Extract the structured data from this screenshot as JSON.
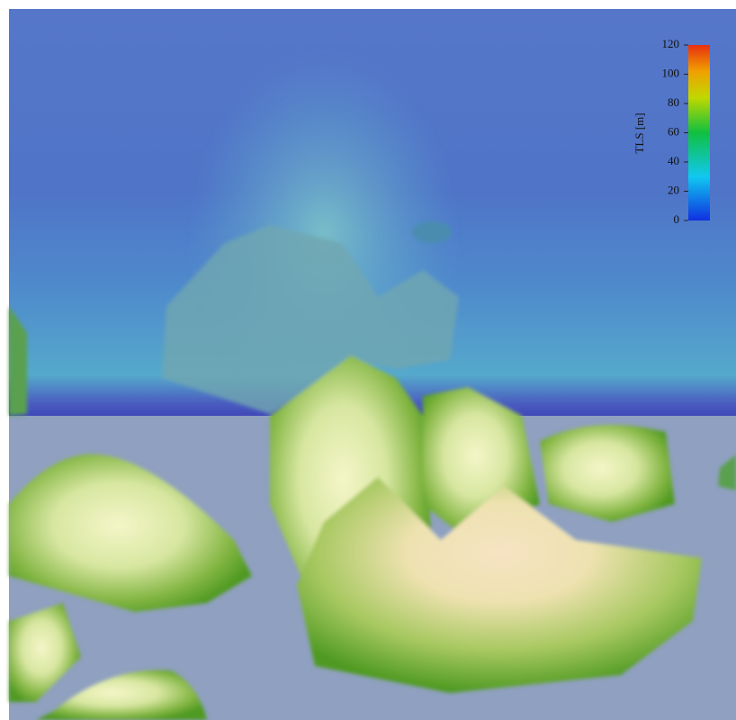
{
  "colorbar": {
    "label": "TLS [m]",
    "range": [
      0,
      120
    ],
    "ticks": [
      0,
      20,
      40,
      60,
      80,
      100,
      120
    ]
  }
}
